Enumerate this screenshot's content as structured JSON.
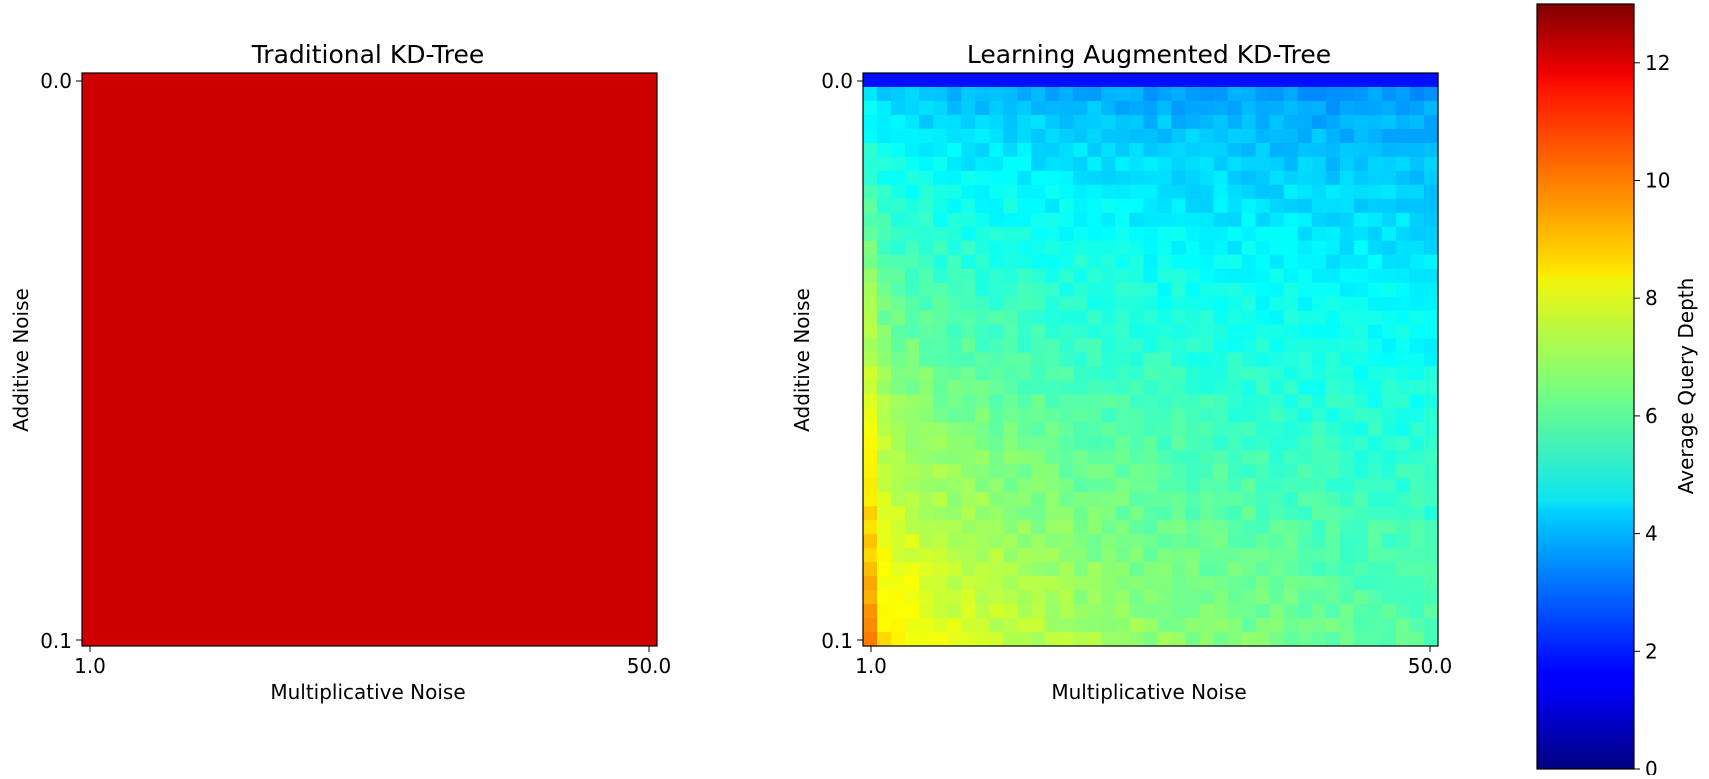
{
  "figure": {
    "colorbar_label": "Average Query Depth",
    "colorbar_ticks": [
      "0",
      "2",
      "4",
      "6",
      "8",
      "10",
      "12"
    ],
    "colorbar_range": [
      0,
      13
    ],
    "colormap": "jet"
  },
  "chart_data": [
    {
      "type": "heatmap",
      "title": "Traditional KD-Tree",
      "xlabel": "Multiplicative Noise",
      "ylabel": "Additive Noise",
      "x_tick_labels": [
        "1.0",
        "50.0"
      ],
      "y_tick_labels": [
        "0.0",
        "0.1"
      ],
      "x_range": [
        1.0,
        50.0
      ],
      "y_range": [
        0.0,
        0.1
      ],
      "grid": "uniform",
      "value": 12.0
    },
    {
      "type": "heatmap",
      "title": "Learning Augmented KD-Tree",
      "xlabel": "Multiplicative Noise",
      "ylabel": "Additive Noise",
      "x_tick_labels": [
        "1.0",
        "50.0"
      ],
      "y_tick_labels": [
        "0.0",
        "0.1"
      ],
      "x_range": [
        1.0,
        50.0
      ],
      "y_range": [
        0.0,
        0.1
      ],
      "grid_columns": 41,
      "grid_rows": 41,
      "value_row_0": 1.8,
      "value_top_left": 4.5,
      "value_top_right": 3.5,
      "value_bottom_left": 9.5,
      "value_bottom_right": 6.0,
      "trend": "depth increases with additive noise and decreases with multiplicative noise"
    }
  ]
}
